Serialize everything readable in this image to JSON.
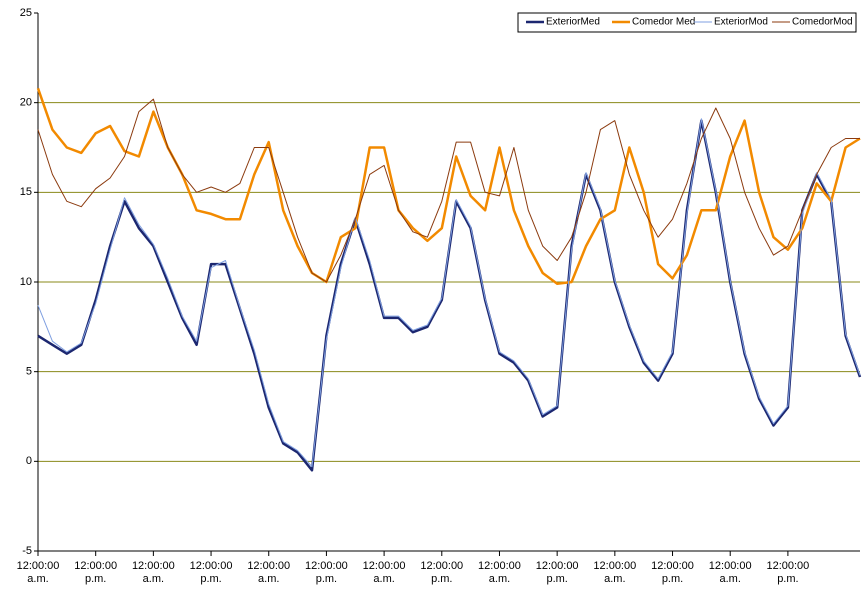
{
  "chart_data": {
    "type": "line",
    "x": [
      0,
      3,
      6,
      9,
      12,
      15,
      18,
      21,
      24,
      27,
      30,
      33,
      36,
      39,
      42,
      45,
      48,
      51,
      54,
      57,
      60,
      63,
      66,
      69,
      72,
      75,
      78,
      81,
      84,
      87,
      90,
      93,
      96,
      99,
      102,
      105,
      108,
      111,
      114,
      117,
      120,
      123,
      126,
      129,
      132,
      135,
      138,
      141,
      144,
      147,
      150,
      153,
      156,
      159,
      162,
      165,
      168,
      171
    ],
    "xlim": [
      0,
      171
    ],
    "xticks": [
      {
        "value": 0,
        "label": "12:00:00 a.m."
      },
      {
        "value": 12,
        "label": "12:00:00 p.m."
      },
      {
        "value": 24,
        "label": "12:00:00 a.m."
      },
      {
        "value": 36,
        "label": "12:00:00 p.m."
      },
      {
        "value": 48,
        "label": "12:00:00 a.m."
      },
      {
        "value": 60,
        "label": "12:00:00 p.m."
      },
      {
        "value": 72,
        "label": "12:00:00 a.m."
      },
      {
        "value": 84,
        "label": "12:00:00 p.m."
      },
      {
        "value": 96,
        "label": "12:00:00 a.m."
      },
      {
        "value": 108,
        "label": "12:00:00 p.m."
      },
      {
        "value": 120,
        "label": "12:00:00 a.m."
      },
      {
        "value": 132,
        "label": "12:00:00 p.m."
      },
      {
        "value": 144,
        "label": "12:00:00 a.m."
      },
      {
        "value": 156,
        "label": "12:00:00 p.m."
      }
    ],
    "ylim": [
      -5,
      25
    ],
    "yticks": [
      -5,
      0,
      5,
      10,
      15,
      20,
      25
    ],
    "grid": true,
    "legend": "top-right",
    "series": [
      {
        "name": "ExteriorMed",
        "color": "#1c2770",
        "width": 2.5,
        "values": [
          7,
          6.5,
          6,
          6.5,
          9,
          12,
          14.5,
          13,
          12,
          10,
          8,
          6.5,
          11,
          11,
          8.5,
          6,
          3,
          1,
          0.5,
          -0.5,
          7,
          11,
          13.5,
          11,
          8,
          8,
          7.2,
          7.5,
          9,
          14.5,
          13,
          9,
          6,
          5.5,
          4.5,
          2.5,
          3,
          12,
          16,
          14,
          10,
          7.5,
          5.5,
          4.5,
          6,
          14,
          19,
          15,
          10,
          6,
          3.5,
          2,
          3,
          14,
          16,
          14.5,
          7,
          4.7
        ]
      },
      {
        "name": "Comedor Med",
        "color": "#f28a00",
        "width": 2.5,
        "values": [
          20.8,
          18.5,
          17.5,
          17.2,
          18.3,
          18.7,
          17.3,
          17,
          19.5,
          17.5,
          16,
          14,
          13.8,
          13.5,
          13.5,
          16,
          17.8,
          14,
          12,
          10.5,
          10,
          12.5,
          13,
          17.5,
          17.5,
          14,
          13,
          12.3,
          13,
          17,
          14.8,
          14,
          17.5,
          14,
          12,
          10.5,
          9.9,
          10,
          12,
          13.5,
          14,
          17.5,
          15,
          11,
          10.2,
          11.5,
          14,
          14,
          17,
          19,
          15,
          12.5,
          11.8,
          13,
          15.5,
          14.5,
          17.5,
          18
        ]
      },
      {
        "name": "ExteriorMod",
        "color": "#7f9fe0",
        "width": 1,
        "values": [
          8.7,
          6.7,
          6.1,
          6.6,
          8.8,
          11.8,
          14.7,
          13.2,
          12.1,
          10.2,
          8.1,
          6.7,
          10.8,
          11.2,
          8.6,
          6.2,
          3.2,
          1.1,
          0.6,
          -0.3,
          6.8,
          10.8,
          13.6,
          11.2,
          8.1,
          8.1,
          7.3,
          7.6,
          9.1,
          14.6,
          13.1,
          9.1,
          6.1,
          5.6,
          4.6,
          2.6,
          3.1,
          11.8,
          16.1,
          14.1,
          10.1,
          7.6,
          5.6,
          4.6,
          6.1,
          13.8,
          19.1,
          15.1,
          10.1,
          6.1,
          3.6,
          2.1,
          3.1,
          13.8,
          16.1,
          14.6,
          7.1,
          4.8
        ]
      },
      {
        "name": "ComedorMod",
        "color": "#8b3a0e",
        "width": 1,
        "values": [
          18.5,
          16,
          14.5,
          14.2,
          15.2,
          15.8,
          17,
          19.5,
          20.2,
          17.5,
          16,
          15,
          15.3,
          15,
          15.5,
          17.5,
          17.5,
          15,
          12.5,
          10.5,
          10,
          11.5,
          13.5,
          16,
          16.5,
          14,
          12.8,
          12.5,
          14.5,
          17.8,
          17.8,
          15,
          14.8,
          17.5,
          14,
          12,
          11.2,
          12.5,
          15,
          18.5,
          19,
          16,
          14,
          12.5,
          13.5,
          15.5,
          18,
          19.7,
          18,
          15,
          13,
          11.5,
          12,
          14,
          16,
          17.5,
          18,
          18
        ]
      }
    ]
  }
}
